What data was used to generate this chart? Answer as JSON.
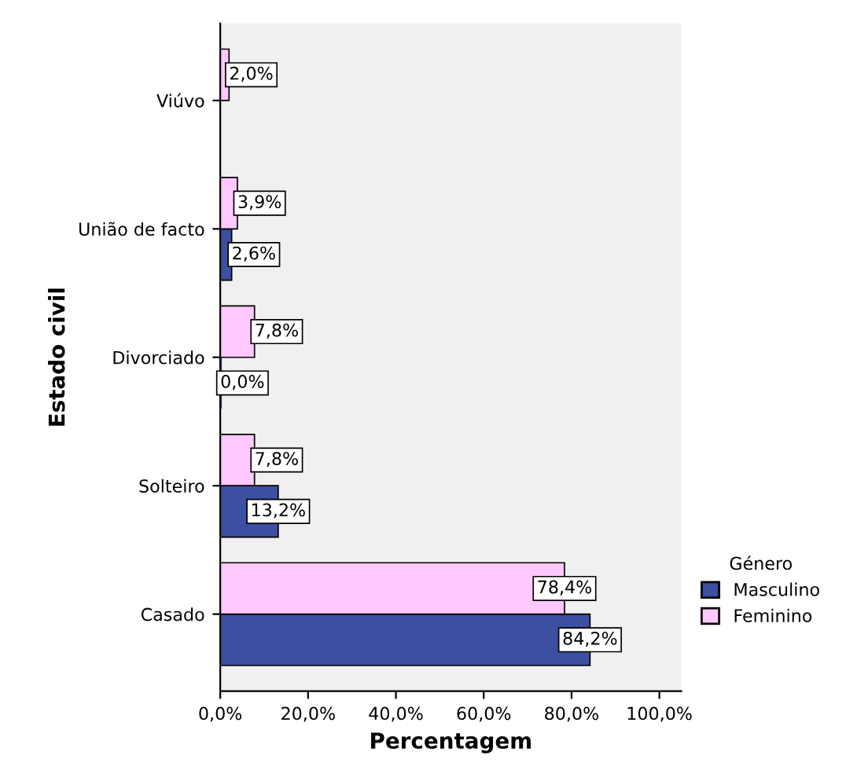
{
  "chart_data": {
    "type": "bar",
    "orientation": "horizontal",
    "xlabel": "Percentagem",
    "ylabel": "Estado civil",
    "legend_title": "Género",
    "legend": "right",
    "grid": false,
    "categories": [
      "Viúvo",
      "União de facto",
      "Divorciado",
      "Solteiro",
      "Casado"
    ],
    "series": [
      {
        "name": "Masculino",
        "color": "#3d4fa0",
        "values": [
          null,
          2.6,
          0,
          13.2,
          84.2
        ],
        "value_labels": [
          null,
          "2,6%",
          "0,0%",
          "13,2%",
          "84,2%"
        ]
      },
      {
        "name": "Feminino",
        "color": "#ffc8ff",
        "values": [
          2.0,
          3.9,
          7.8,
          7.8,
          78.4
        ],
        "value_labels": [
          "2,0%",
          "3,9%",
          "7,8%",
          "7,8%",
          "78,4%"
        ]
      }
    ],
    "xlim": [
      0,
      105
    ],
    "xticks": [
      {
        "value": 0,
        "label": "0,0%"
      },
      {
        "value": 20,
        "label": "20,0%"
      },
      {
        "value": 40,
        "label": "40,0%"
      },
      {
        "value": 60,
        "label": "60,0%"
      },
      {
        "value": 80,
        "label": "80,0%"
      },
      {
        "value": 100,
        "label": "100,0%"
      }
    ]
  }
}
